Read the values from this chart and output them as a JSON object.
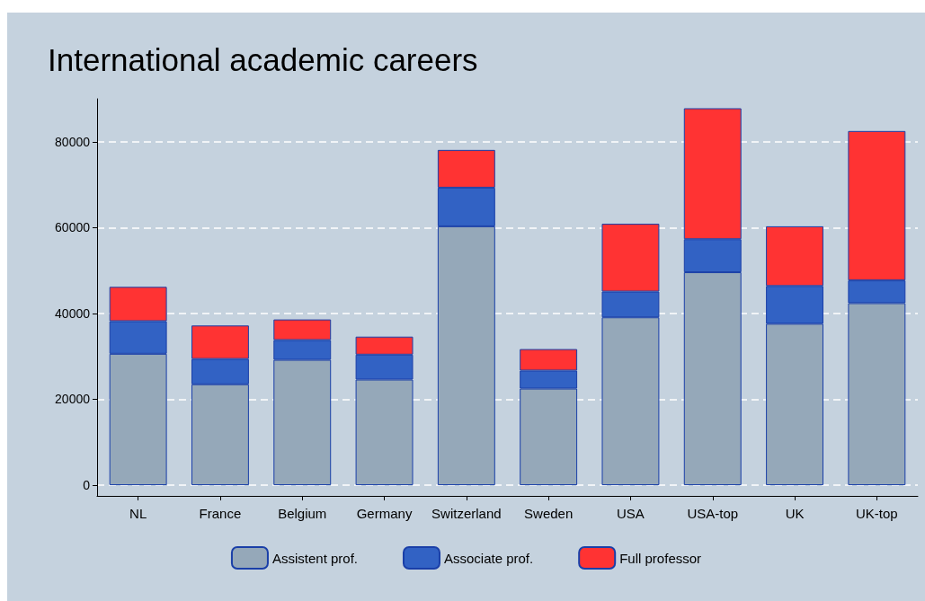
{
  "chart_data": {
    "type": "bar",
    "title": "International academic careers",
    "categories": [
      "NL",
      "France",
      "Belgium",
      "Germany",
      "Switzerland",
      "Sweden",
      "USA",
      "USA-top",
      "UK",
      "UK-top"
    ],
    "series": [
      {
        "name": "Assistent prof.",
        "color": "#95a8b9",
        "values": [
          30600,
          23500,
          29200,
          24600,
          60300,
          22500,
          39100,
          49600,
          37600,
          42400
        ]
      },
      {
        "name": "Associate prof.",
        "color": "#3262c4",
        "values": [
          7600,
          5900,
          4600,
          5800,
          9000,
          4200,
          6000,
          7700,
          8800,
          5300
        ]
      },
      {
        "name": "Full professor",
        "color": "#ff3333",
        "values": [
          8000,
          7800,
          4800,
          4200,
          8800,
          5000,
          15800,
          30500,
          13900,
          34800
        ]
      }
    ],
    "stacked": true,
    "ylim": [
      -2500,
      90000
    ],
    "yticks": [
      0,
      20000,
      40000,
      60000,
      80000
    ],
    "grid": "y",
    "legend": "bottom"
  }
}
